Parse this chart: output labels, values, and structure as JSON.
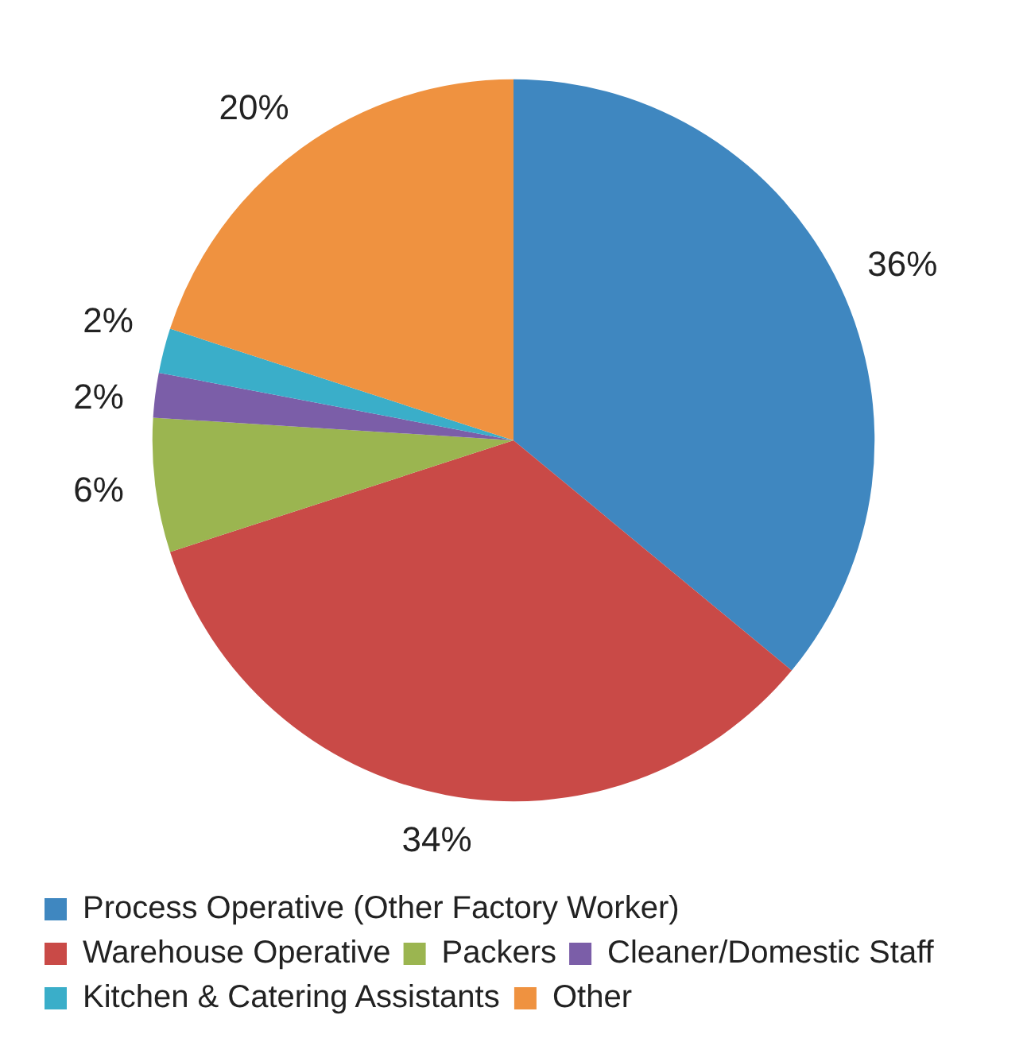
{
  "chart_data": {
    "type": "pie",
    "categories": [
      "Process Operative (Other Factory Worker)",
      "Warehouse Operative",
      "Packers",
      "Cleaner/Domestic Staff",
      "Kitchen & Catering Assistants",
      "Other"
    ],
    "values": [
      36,
      34,
      6,
      2,
      2,
      20
    ],
    "colors": [
      "#3f87c0",
      "#c94a47",
      "#9bb550",
      "#7b5ea8",
      "#3aaec9",
      "#ef9240"
    ],
    "value_labels": [
      "36%",
      "34%",
      "6%",
      "2%",
      "2%",
      "20%"
    ],
    "legend": "bottom"
  }
}
